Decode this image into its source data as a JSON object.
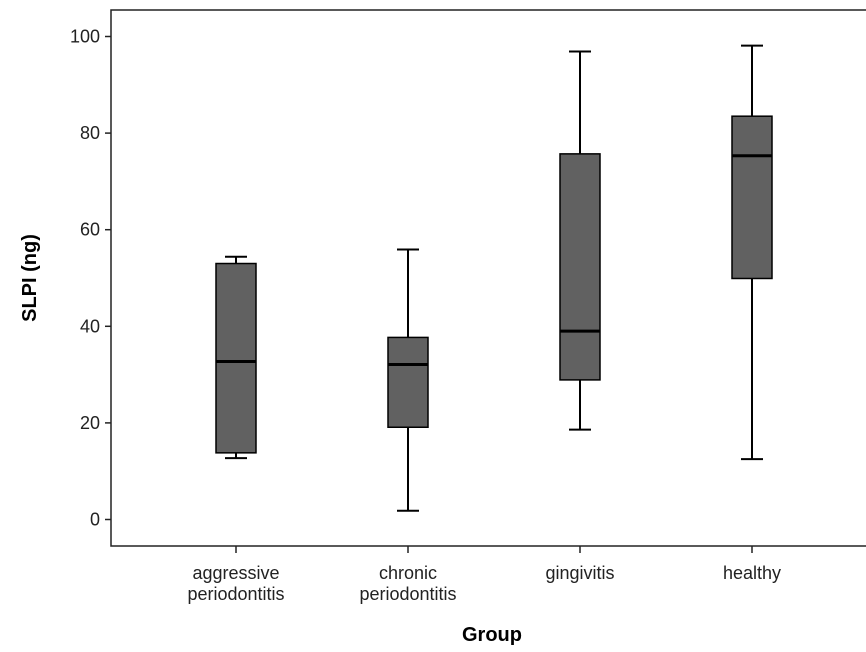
{
  "chart_data": {
    "type": "boxplot",
    "title": "",
    "xlabel": "Group",
    "ylabel": "SLPI (ng)",
    "ylim": [
      -5,
      105
    ],
    "yticks": [
      0,
      20,
      40,
      60,
      80,
      100
    ],
    "grid": false,
    "legend": "none",
    "categories": [
      [
        "aggressive",
        "periodontitis"
      ],
      [
        "chronic",
        "periodontitis"
      ],
      [
        "gingivitis"
      ],
      [
        "healthy"
      ]
    ],
    "series": [
      {
        "boxes": [
          {
            "min": 12.7,
            "q1": 13.8,
            "median": 32.7,
            "q3": 53.0,
            "max": 54.4
          },
          {
            "min": 1.8,
            "q1": 19.1,
            "median": 32.1,
            "q3": 37.7,
            "max": 55.9
          },
          {
            "min": 18.6,
            "q1": 28.9,
            "median": 39.0,
            "q3": 75.7,
            "max": 96.9
          },
          {
            "min": 12.5,
            "q1": 49.9,
            "median": 75.3,
            "q3": 83.5,
            "max": 98.1
          }
        ]
      }
    ],
    "colors": {
      "box_fill": "#616161",
      "stroke": "#000000",
      "axis": "#222222"
    }
  }
}
